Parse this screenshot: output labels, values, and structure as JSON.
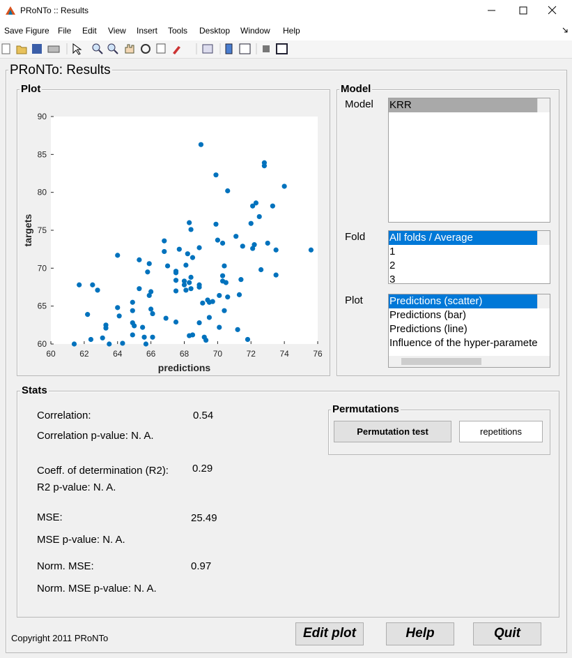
{
  "window_title": "PRoNTo :: Results",
  "menu": [
    "Save Figure",
    "File",
    "Edit",
    "View",
    "Insert",
    "Tools",
    "Desktop",
    "Window",
    "Help"
  ],
  "figure_title": "PRoNTo: Results",
  "plot_panel": {
    "title": "Plot"
  },
  "model_panel": {
    "title": "Model",
    "model_label": "Model",
    "models": [
      "KRR"
    ],
    "fold_label": "Fold",
    "folds": [
      "All folds / Average",
      "1",
      "2",
      "3"
    ],
    "plot_label": "Plot",
    "plots": [
      "Predictions (scatter)",
      "Predictions (bar)",
      "Predictions (line)",
      "Influence of the hyper-paramete"
    ]
  },
  "stats": {
    "title": "Stats",
    "correlation_label": "Correlation:",
    "correlation": "0.54",
    "correlation_p": "Correlation p-value: N. A.",
    "r2_label": "Coeff. of determination (R2):",
    "r2": "0.29",
    "r2_p": "R2 p-value: N. A.",
    "mse_label": "MSE:",
    "mse": "25.49",
    "mse_p": "MSE p-value: N. A.",
    "nmse_label": "Norm. MSE:",
    "nmse": "0.97",
    "nmse_p": "Norm. MSE p-value: N. A."
  },
  "permutations": {
    "title": "Permutations",
    "button": "Permutation test",
    "input": "repetitions"
  },
  "footer": {
    "copyright": "Copyright 2011 PRoNTo",
    "buttons": [
      "Edit plot",
      "Help",
      "Quit"
    ]
  },
  "chart_data": {
    "type": "scatter",
    "xlabel": "predictions",
    "ylabel": "targets",
    "color": "#0072bd",
    "x": [
      61.4,
      61.7,
      62.2,
      62.4,
      62.5,
      62.8,
      63.1,
      63.3,
      63.3,
      63.5,
      64.0,
      64.0,
      64.1,
      64.3,
      64.9,
      64.9,
      64.9,
      64.9,
      65.0,
      65.3,
      65.3,
      65.5,
      65.6,
      65.7,
      65.8,
      65.9,
      65.9,
      66.0,
      66.0,
      66.1,
      66.1,
      66.8,
      66.8,
      66.9,
      67.0,
      67.5,
      67.5,
      67.5,
      67.5,
      67.5,
      67.7,
      68.0,
      68.0,
      68.1,
      68.1,
      68.2,
      68.3,
      68.3,
      68.3,
      68.4,
      68.4,
      68.4,
      68.5,
      68.5,
      68.9,
      68.9,
      68.9,
      69.0,
      68.9,
      69.1,
      69.2,
      69.3,
      69.4,
      69.5,
      69.5,
      69.7,
      69.9,
      69.9,
      70.0,
      70.1,
      70.1,
      70.3,
      70.3,
      70.3,
      70.4,
      70.4,
      70.5,
      70.6,
      70.6,
      71.1,
      71.2,
      71.3,
      71.4,
      71.5,
      71.8,
      72.0,
      72.1,
      72.1,
      72.2,
      72.3,
      72.5,
      72.6,
      72.8,
      72.8,
      73.0,
      73.3,
      73.5,
      73.5,
      74.0,
      75.6
    ],
    "values": [
      60.0,
      67.8,
      63.9,
      60.6,
      67.8,
      67.1,
      60.8,
      62.5,
      62.1,
      60.0,
      71.7,
      64.8,
      63.7,
      60.1,
      65.5,
      64.4,
      62.8,
      61.2,
      62.4,
      71.1,
      67.3,
      62.2,
      60.9,
      60.0,
      69.5,
      70.6,
      66.4,
      66.9,
      64.6,
      60.9,
      64.0,
      73.6,
      72.2,
      63.4,
      70.3,
      69.4,
      68.4,
      62.9,
      69.6,
      67.0,
      72.5,
      68.3,
      67.8,
      67.1,
      70.4,
      71.9,
      76.0,
      68.1,
      61.1,
      75.1,
      68.8,
      67.3,
      61.2,
      71.4,
      62.8,
      67.8,
      72.7,
      86.3,
      67.5,
      65.4,
      60.9,
      60.5,
      65.8,
      63.5,
      65.5,
      65.6,
      82.3,
      75.8,
      73.7,
      62.2,
      66.4,
      69.0,
      68.3,
      73.3,
      64.4,
      70.3,
      68.1,
      80.2,
      66.2,
      74.2,
      61.9,
      66.5,
      68.5,
      72.9,
      60.6,
      75.9,
      78.2,
      72.6,
      73.1,
      78.6,
      76.8,
      69.8,
      83.9,
      83.5,
      73.3,
      78.2,
      72.4,
      69.1,
      80.8,
      72.4
    ],
    "xlim": [
      60,
      76
    ],
    "ylim": [
      60,
      90
    ],
    "xticks": [
      60,
      62,
      64,
      66,
      68,
      70,
      72,
      74,
      76
    ],
    "yticks": [
      60,
      65,
      70,
      75,
      80,
      85,
      90
    ]
  }
}
